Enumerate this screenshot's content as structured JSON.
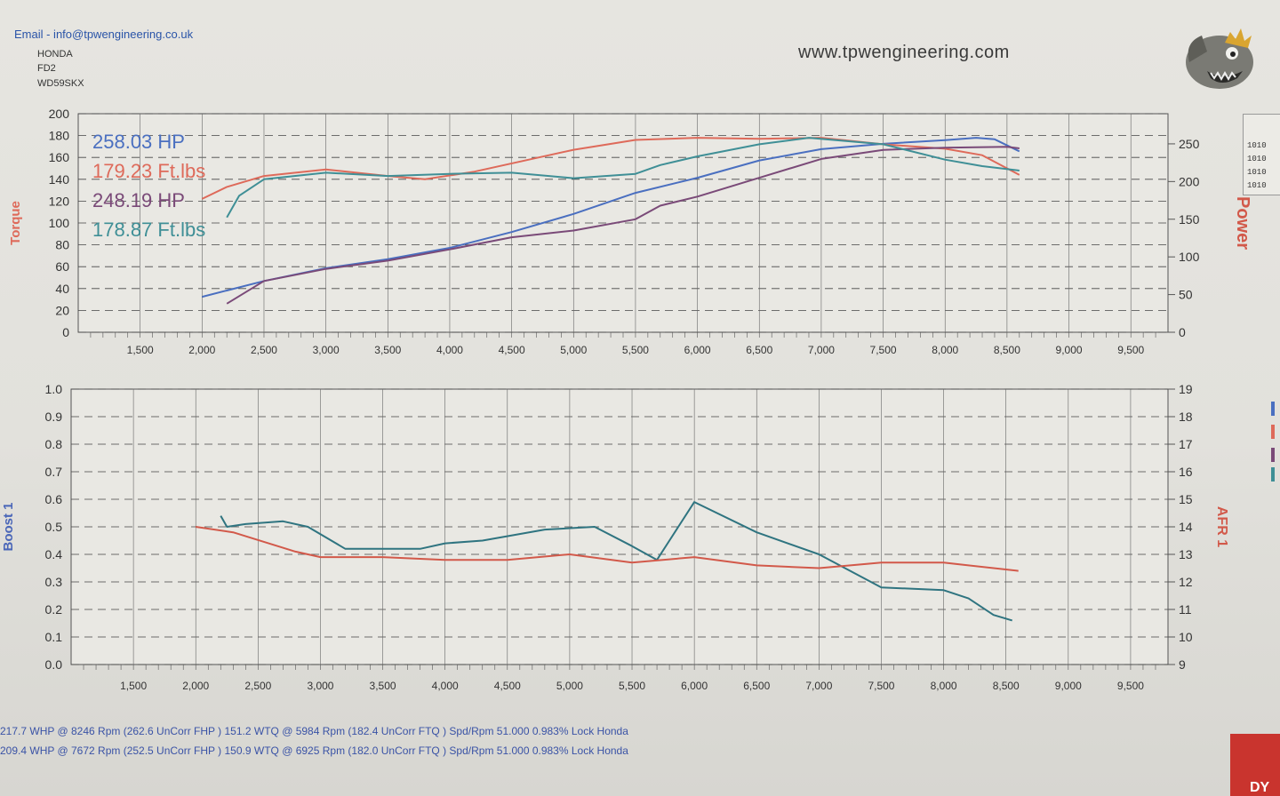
{
  "header": {
    "email": "Email - info@tpwengineering.co.uk",
    "make": "HONDA",
    "model": "FD2",
    "registration": "WD59SKX",
    "website": "www.tpwengineering.com",
    "logo_icon": "fish-with-crown-icon"
  },
  "legend_rows": [
    "1010",
    "1010",
    "1010",
    "1010"
  ],
  "footer": {
    "line1": "217.7 WHP @ 8246 Rpm (262.6 UnCorr FHP )  151.2 WTQ @ 5984 Rpm (182.4 UnCorr FTQ ) Spd/Rpm 51.000 0.983% Lock Honda",
    "line2": "209.4 WHP @ 7672 Rpm (252.5 UnCorr FHP )  150.9 WTQ @ 6925 Rpm (182.0 UnCorr FTQ ) Spd/Rpm 51.000 0.983% Lock Honda"
  },
  "badge_text": "DY",
  "colors": {
    "hp1": "#4a6fc0",
    "tq1": "#de6a5a",
    "hp2": "#7a4a78",
    "tq2": "#3f8f96",
    "boost": "#2f7480",
    "afr": "#d2594a",
    "grid": "#444444"
  },
  "chart_data": [
    {
      "type": "line",
      "y_left_label": "Torque",
      "y_right_label": "Power",
      "xlim": [
        1000,
        9800
      ],
      "ylim_left": [
        0,
        200
      ],
      "ylim_right": [
        0,
        290
      ],
      "x_ticks": [
        "1,500",
        "2,000",
        "2,500",
        "3,000",
        "3,500",
        "4,000",
        "4,500",
        "5,000",
        "5,500",
        "6,000",
        "6,500",
        "7,000",
        "7,500",
        "8,000",
        "8,500",
        "9,000",
        "9,500"
      ],
      "y_left_ticks": [
        "0",
        "20",
        "40",
        "60",
        "80",
        "100",
        "120",
        "140",
        "160",
        "180",
        "200"
      ],
      "y_right_ticks": [
        "0",
        "50",
        "100",
        "150",
        "200",
        "250"
      ],
      "readouts": [
        "258.03 HP",
        "179.23 Ft.lbs",
        "248.19 HP",
        "178.87 Ft.lbs"
      ],
      "series": [
        {
          "axis": "right",
          "color_key": "hp1",
          "points": [
            [
              2000,
              47
            ],
            [
              2500,
              68
            ],
            [
              3000,
              85
            ],
            [
              3500,
              97
            ],
            [
              4000,
              112
            ],
            [
              4500,
              133
            ],
            [
              5000,
              157
            ],
            [
              5500,
              185
            ],
            [
              6000,
              205
            ],
            [
              6500,
              228
            ],
            [
              7000,
              243
            ],
            [
              7500,
              250
            ],
            [
              8000,
              255
            ],
            [
              8250,
              258
            ],
            [
              8400,
              256
            ],
            [
              8600,
              240
            ]
          ]
        },
        {
          "axis": "left",
          "color_key": "tq1",
          "points": [
            [
              2000,
              122
            ],
            [
              2200,
              133
            ],
            [
              2500,
              143
            ],
            [
              3000,
              149
            ],
            [
              3500,
              143
            ],
            [
              3800,
              140
            ],
            [
              4200,
              147
            ],
            [
              5000,
              167
            ],
            [
              5500,
              176
            ],
            [
              6000,
              178
            ],
            [
              6500,
              177
            ],
            [
              7000,
              178
            ],
            [
              7500,
              172
            ],
            [
              8000,
              168
            ],
            [
              8300,
              162
            ],
            [
              8600,
              144
            ]
          ]
        },
        {
          "axis": "right",
          "color_key": "hp2",
          "points": [
            [
              2200,
              38
            ],
            [
              2500,
              68
            ],
            [
              3000,
              84
            ],
            [
              3500,
              95
            ],
            [
              4000,
              110
            ],
            [
              4500,
              126
            ],
            [
              5000,
              135
            ],
            [
              5500,
              150
            ],
            [
              5700,
              168
            ],
            [
              6000,
              180
            ],
            [
              6500,
              205
            ],
            [
              7000,
              230
            ],
            [
              7500,
              242
            ],
            [
              8000,
              245
            ],
            [
              8500,
              246
            ],
            [
              8600,
              244
            ]
          ]
        },
        {
          "axis": "left",
          "color_key": "tq2",
          "points": [
            [
              2200,
              105
            ],
            [
              2300,
              125
            ],
            [
              2500,
              140
            ],
            [
              3000,
              146
            ],
            [
              3500,
              143
            ],
            [
              4000,
              145
            ],
            [
              4500,
              146
            ],
            [
              5000,
              141
            ],
            [
              5500,
              145
            ],
            [
              5700,
              153
            ],
            [
              6000,
              161
            ],
            [
              6500,
              172
            ],
            [
              6900,
              178
            ],
            [
              7500,
              172
            ],
            [
              8000,
              158
            ],
            [
              8300,
              152
            ],
            [
              8600,
              148
            ]
          ]
        }
      ]
    },
    {
      "type": "line",
      "y_left_label": "Boost 1",
      "y_right_label": "AFR 1",
      "xlim": [
        1000,
        9800
      ],
      "ylim_left": [
        0,
        1.0
      ],
      "ylim_right": [
        9,
        19
      ],
      "x_ticks": [
        "1,500",
        "2,000",
        "2,500",
        "3,000",
        "3,500",
        "4,000",
        "4,500",
        "5,000",
        "5,500",
        "6,000",
        "6,500",
        "7,000",
        "7,500",
        "8,000",
        "8,500",
        "9,000",
        "9,500"
      ],
      "y_left_ticks": [
        "0.0",
        "0.1",
        "0.2",
        "0.3",
        "0.4",
        "0.5",
        "0.6",
        "0.7",
        "0.8",
        "0.9",
        "1.0"
      ],
      "y_right_ticks": [
        "9",
        "10",
        "11",
        "12",
        "13",
        "14",
        "15",
        "16",
        "17",
        "18",
        "19"
      ],
      "series": [
        {
          "axis": "left",
          "color_key": "boost",
          "points": [
            [
              2200,
              0.54
            ],
            [
              2250,
              0.5
            ],
            [
              2400,
              0.51
            ],
            [
              2700,
              0.52
            ],
            [
              2900,
              0.5
            ],
            [
              3200,
              0.42
            ],
            [
              3800,
              0.42
            ],
            [
              4000,
              0.44
            ],
            [
              4300,
              0.45
            ],
            [
              4800,
              0.49
            ],
            [
              5200,
              0.5
            ],
            [
              5500,
              0.43
            ],
            [
              5700,
              0.38
            ],
            [
              5800,
              0.45
            ],
            [
              6000,
              0.59
            ],
            [
              6500,
              0.48
            ],
            [
              7000,
              0.4
            ],
            [
              7500,
              0.28
            ],
            [
              8000,
              0.27
            ],
            [
              8200,
              0.24
            ],
            [
              8400,
              0.18
            ],
            [
              8550,
              0.16
            ]
          ]
        },
        {
          "axis": "left",
          "color_key": "afr",
          "points": [
            [
              2000,
              0.5
            ],
            [
              2300,
              0.48
            ],
            [
              2800,
              0.41
            ],
            [
              3000,
              0.39
            ],
            [
              3500,
              0.39
            ],
            [
              4000,
              0.38
            ],
            [
              4500,
              0.38
            ],
            [
              5000,
              0.4
            ],
            [
              5500,
              0.37
            ],
            [
              6000,
              0.39
            ],
            [
              6500,
              0.36
            ],
            [
              7000,
              0.35
            ],
            [
              7500,
              0.37
            ],
            [
              8000,
              0.37
            ],
            [
              8600,
              0.34
            ]
          ]
        }
      ]
    }
  ]
}
